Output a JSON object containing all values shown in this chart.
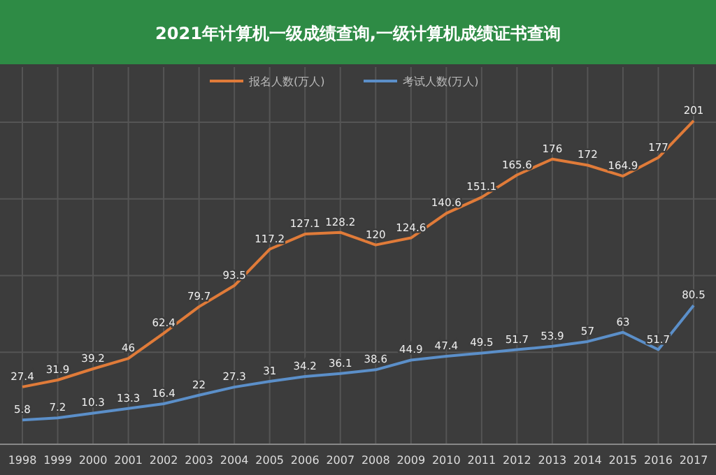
{
  "chart_data": {
    "type": "line",
    "title": "2021年计算机一级成绩查询,一级计算机成绩证书查询",
    "categories": [
      "1998",
      "1999",
      "2000",
      "2001",
      "2002",
      "2003",
      "2004",
      "2005",
      "2006",
      "2007",
      "2008",
      "2009",
      "2010",
      "2011",
      "2012",
      "2013",
      "2014",
      "2015",
      "2016",
      "2017"
    ],
    "series": [
      {
        "name": "报名人数(万人)",
        "color": "#e07b39",
        "values": [
          27.4,
          31.9,
          39.2,
          46,
          62.4,
          79.7,
          93.5,
          117.2,
          127.1,
          128.2,
          120,
          124.6,
          140.6,
          151.1,
          165.6,
          176,
          172,
          164.9,
          177,
          201
        ]
      },
      {
        "name": "考试人数(万人)",
        "color": "#5b8fc9",
        "values": [
          5.8,
          7.2,
          10.3,
          13.3,
          16.4,
          22,
          27.3,
          31,
          34.2,
          36.1,
          38.6,
          44.9,
          47.4,
          49.5,
          51.7,
          53.9,
          57,
          63,
          51.7,
          80.5
        ]
      }
    ],
    "ylim": [
      -10,
      236
    ],
    "yticks": [
      {
        "value": 50,
        "label": null
      },
      {
        "value": 100,
        "label": null
      },
      {
        "value": 150,
        "label": null
      },
      {
        "value": 200,
        "label": null
      }
    ],
    "tick_labels": "x",
    "grid": true,
    "legend": "top",
    "data_labels": true,
    "marker": "none",
    "line_style": "solid"
  }
}
